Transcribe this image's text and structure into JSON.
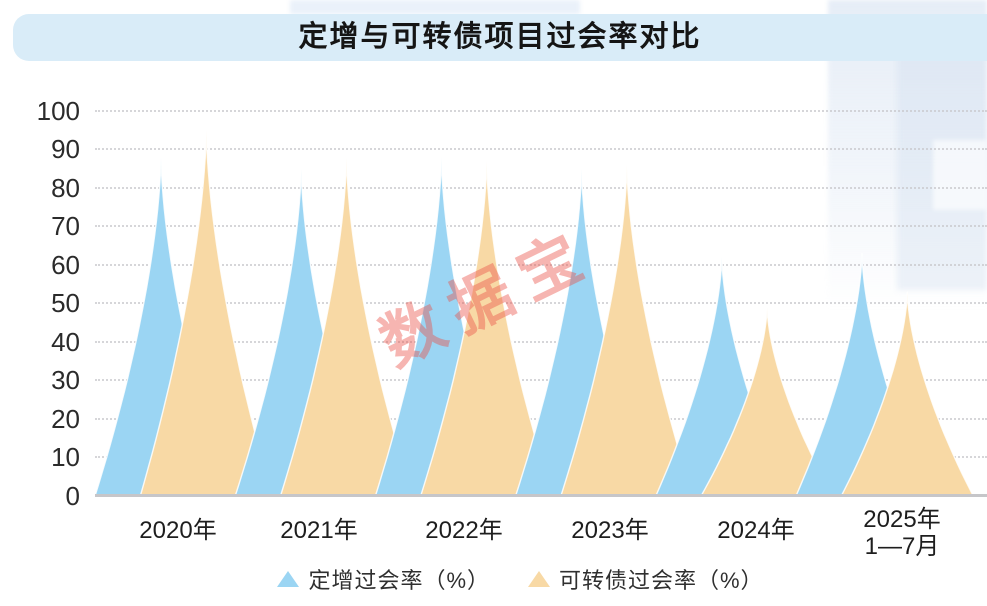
{
  "title": "定增与可转债项目过会率对比",
  "watermark": "数据宝",
  "chart_data": {
    "type": "area",
    "title": "定增与可转债项目过会率对比",
    "categories": [
      "2020年",
      "2021年",
      "2022年",
      "2023年",
      "2024年",
      "2025年\n1—7月"
    ],
    "series": [
      {
        "name": "定增过会率（%）",
        "color": "#9bd5f3",
        "values": [
          88,
          85,
          88,
          85,
          62,
          63
        ]
      },
      {
        "name": "可转债过会率（%）",
        "color": "#f8d9a5",
        "values": [
          95,
          88,
          87,
          86,
          49,
          53
        ]
      }
    ],
    "xlabel": "",
    "ylabel": "",
    "ylim": [
      0,
      100
    ],
    "yticks": [
      0,
      10,
      20,
      30,
      40,
      50,
      60,
      70,
      80,
      90,
      100
    ],
    "grid": "horizontal-dotted",
    "legend_position": "bottom",
    "shape": "sharp concave spikes, one blue + one orange spike per year, orange offset right"
  },
  "colors": {
    "banner_bg": "#d9ecf8",
    "series_blue": "#9bd5f3",
    "series_orange": "#f8d9a5",
    "axis_line": "#c6c6c9",
    "gridline": "#c9c9cd",
    "tick_text": "#2b2b2b",
    "watermark_text": "rgba(233,78,68,0.42)"
  }
}
